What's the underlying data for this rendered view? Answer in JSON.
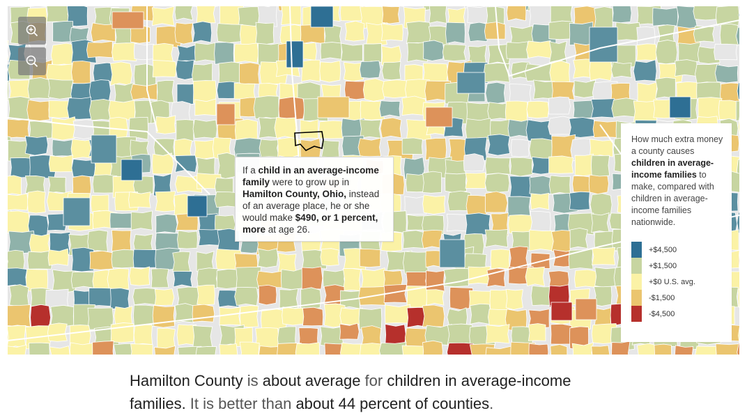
{
  "map": {
    "colors": {
      "plus_4500": "#2e6f94",
      "plus_1500": "#c7d5a1",
      "plus_0": "#fbf2a6",
      "minus_1500": "#ebc56f",
      "minus_4500": "#b6302c",
      "blue_mid": "#5b8fa0",
      "blue_light": "#8fb2aa",
      "orange": "#dd925a",
      "no_data": "#e6e6e6",
      "boundary": "#ffffff"
    },
    "selected_county_outline": "#000000"
  },
  "zoom": {
    "in_icon": "zoom-in-icon",
    "out_icon": "zoom-out-icon"
  },
  "tooltip": {
    "t1": "If a ",
    "t2": "child in an average-income family",
    "t3": " were to grow up in ",
    "t4": "Hamilton County, Ohio,",
    "t5": " instead of an average place, he or she would make ",
    "t6": "$490, or 1 percent, more",
    "t7": " at age 26."
  },
  "legend": {
    "d1": "How much extra money a county causes ",
    "d2": "children in average-income families",
    "d3": " to make, compared with children in average-income families nationwide.",
    "items": [
      {
        "label": "+$4,500",
        "color": "#2e6f94"
      },
      {
        "label": "+$1,500",
        "color": "#c7d5a1"
      },
      {
        "label": "+$0 U.S. avg.",
        "color": "#fbf2a6"
      },
      {
        "label": "-$1,500",
        "color": "#ebc56f"
      },
      {
        "label": "-$4,500",
        "color": "#b6302c"
      }
    ]
  },
  "caption": {
    "c1": "Hamilton County",
    "c2": " is ",
    "c3": "about average",
    "c4": " for ",
    "c5": "children in average-income families.",
    "c6": " It is better than ",
    "c7": "about 44 percent of counties",
    "c8": "."
  }
}
